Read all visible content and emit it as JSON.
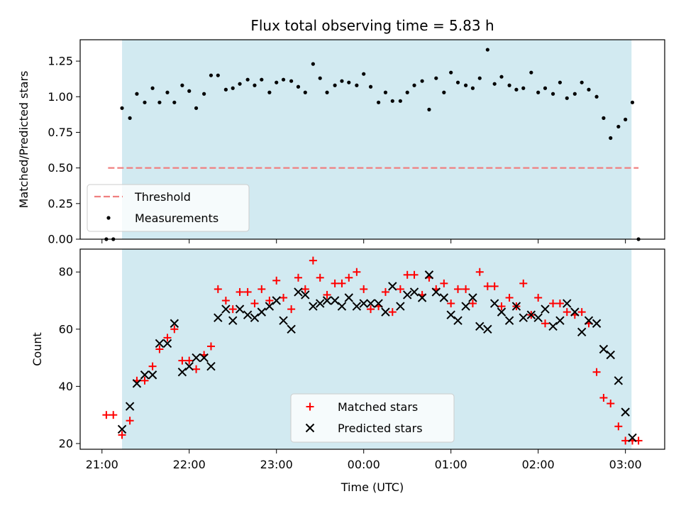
{
  "chart_data": [
    {
      "type": "scatter",
      "title": "Flux total observing time = 5.83 h",
      "xlabel": "",
      "ylabel": "Matched/Predicted stars",
      "ylim": [
        0,
        1.4
      ],
      "yticks": [
        "0.00",
        "0.25",
        "0.50",
        "0.75",
        "1.00",
        "1.25"
      ],
      "legend": {
        "position": "lower-left",
        "entries": [
          "Threshold",
          "Measurements"
        ]
      },
      "shaded_interval_hours": [
        21.23,
        27.07
      ],
      "shade_color": "#add8e6",
      "threshold": {
        "name": "Threshold",
        "value": 0.5,
        "x_range": [
          21.07,
          27.15
        ],
        "color": "#f08080"
      },
      "series": [
        {
          "name": "Measurements",
          "color": "#000000",
          "x": [
            21.05,
            21.13,
            21.23,
            21.32,
            21.4,
            21.49,
            21.58,
            21.66,
            21.75,
            21.83,
            21.92,
            22.0,
            22.08,
            22.17,
            22.25,
            22.33,
            22.42,
            22.5,
            22.58,
            22.67,
            22.75,
            22.83,
            22.92,
            23.0,
            23.08,
            23.17,
            23.25,
            23.33,
            23.42,
            23.5,
            23.58,
            23.67,
            23.75,
            23.83,
            23.92,
            24.0,
            24.08,
            24.17,
            24.25,
            24.33,
            24.42,
            24.5,
            24.58,
            24.67,
            24.75,
            24.83,
            24.92,
            25.0,
            25.08,
            25.17,
            25.25,
            25.33,
            25.42,
            25.5,
            25.58,
            25.67,
            25.75,
            25.83,
            25.92,
            26.0,
            26.08,
            26.17,
            26.25,
            26.33,
            26.42,
            26.5,
            26.58,
            26.67,
            26.75,
            26.83,
            26.92,
            27.0,
            27.08,
            27.15
          ],
          "y": [
            0.0,
            0.0,
            0.92,
            0.85,
            1.02,
            0.96,
            1.06,
            0.96,
            1.03,
            0.96,
            1.08,
            1.04,
            0.92,
            1.02,
            1.15,
            1.15,
            1.05,
            1.06,
            1.09,
            1.12,
            1.08,
            1.12,
            1.03,
            1.1,
            1.12,
            1.11,
            1.07,
            1.03,
            1.23,
            1.13,
            1.03,
            1.08,
            1.11,
            1.1,
            1.08,
            1.16,
            1.07,
            0.96,
            1.03,
            0.97,
            0.97,
            1.03,
            1.08,
            1.11,
            0.91,
            1.13,
            1.03,
            1.17,
            1.1,
            1.08,
            1.06,
            1.13,
            1.33,
            1.09,
            1.14,
            1.08,
            1.05,
            1.06,
            1.17,
            1.03,
            1.06,
            1.02,
            1.1,
            0.99,
            1.02,
            1.1,
            1.05,
            1.0,
            0.85,
            0.71,
            0.79,
            0.84,
            0.96,
            0.0
          ]
        }
      ]
    },
    {
      "type": "scatter",
      "title": "",
      "xlabel": "Time (UTC)",
      "ylabel": "Count",
      "xlim_hours": [
        20.75,
        27.45
      ],
      "ylim": [
        18,
        88
      ],
      "xticks": [
        {
          "value": 21,
          "label": "21:00"
        },
        {
          "value": 22,
          "label": "22:00"
        },
        {
          "value": 23,
          "label": "23:00"
        },
        {
          "value": 24,
          "label": "00:00"
        },
        {
          "value": 25,
          "label": "01:00"
        },
        {
          "value": 26,
          "label": "02:00"
        },
        {
          "value": 27,
          "label": "03:00"
        }
      ],
      "yticks": [
        "20",
        "40",
        "60",
        "80"
      ],
      "legend": {
        "position": "bottom-center",
        "entries": [
          "Matched stars",
          "Predicted stars"
        ]
      },
      "shaded_interval_hours": [
        21.23,
        27.07
      ],
      "shade_color": "#add8e6",
      "series": [
        {
          "name": "Matched stars",
          "marker": "+",
          "color": "#ff0000",
          "x": [
            21.05,
            21.13,
            21.23,
            21.32,
            21.4,
            21.49,
            21.58,
            21.66,
            21.75,
            21.83,
            21.92,
            22.0,
            22.08,
            22.17,
            22.25,
            22.33,
            22.42,
            22.5,
            22.58,
            22.67,
            22.75,
            22.83,
            22.92,
            23.0,
            23.08,
            23.17,
            23.25,
            23.33,
            23.42,
            23.5,
            23.58,
            23.67,
            23.75,
            23.83,
            23.92,
            24.0,
            24.08,
            24.17,
            24.25,
            24.33,
            24.42,
            24.5,
            24.58,
            24.67,
            24.75,
            24.83,
            24.92,
            25.0,
            25.08,
            25.17,
            25.25,
            25.33,
            25.42,
            25.5,
            25.58,
            25.67,
            25.75,
            25.83,
            25.92,
            26.0,
            26.08,
            26.17,
            26.25,
            26.33,
            26.42,
            26.5,
            26.58,
            26.67,
            26.75,
            26.83,
            26.92,
            27.0,
            27.08,
            27.15
          ],
          "y": [
            30,
            30,
            23,
            28,
            42,
            42,
            47,
            53,
            57,
            60,
            49,
            49,
            46,
            51,
            54,
            74,
            70,
            67,
            73,
            73,
            69,
            74,
            70,
            77,
            71,
            67,
            78,
            74,
            84,
            78,
            72,
            76,
            76,
            78,
            80,
            74,
            67,
            68,
            73,
            66,
            74,
            79,
            79,
            72,
            78,
            74,
            76,
            69,
            74,
            74,
            69,
            80,
            75,
            75,
            68,
            71,
            68,
            76,
            65,
            71,
            62,
            69,
            69,
            66,
            65,
            66,
            62,
            45,
            36,
            34,
            26,
            21,
            21,
            21
          ]
        },
        {
          "name": "Predicted stars",
          "marker": "x",
          "color": "#000000",
          "x": [
            21.23,
            21.32,
            21.4,
            21.49,
            21.58,
            21.66,
            21.75,
            21.83,
            21.92,
            22.0,
            22.08,
            22.17,
            22.25,
            22.33,
            22.42,
            22.5,
            22.58,
            22.67,
            22.75,
            22.83,
            22.92,
            23.0,
            23.08,
            23.17,
            23.25,
            23.33,
            23.42,
            23.5,
            23.58,
            23.67,
            23.75,
            23.83,
            23.92,
            24.0,
            24.08,
            24.17,
            24.25,
            24.33,
            24.42,
            24.5,
            24.58,
            24.67,
            24.75,
            24.83,
            24.92,
            25.0,
            25.08,
            25.17,
            25.25,
            25.33,
            25.42,
            25.5,
            25.58,
            25.67,
            25.75,
            25.83,
            25.92,
            26.0,
            26.08,
            26.17,
            26.25,
            26.33,
            26.42,
            26.5,
            26.58,
            26.67,
            26.75,
            26.83,
            26.92,
            27.0,
            27.08
          ],
          "y": [
            25,
            33,
            41,
            44,
            44,
            55,
            55,
            62,
            45,
            47,
            50,
            50,
            47,
            64,
            67,
            63,
            67,
            65,
            64,
            66,
            68,
            70,
            63,
            60,
            73,
            72,
            68,
            69,
            70,
            70,
            68,
            71,
            68,
            69,
            69,
            69,
            66,
            75,
            68,
            72,
            73,
            71,
            79,
            73,
            71,
            65,
            63,
            68,
            71,
            61,
            60,
            69,
            66,
            63,
            68,
            64,
            65,
            64,
            67,
            61,
            63,
            69,
            66,
            59,
            63,
            62,
            53,
            51,
            42,
            31,
            22
          ]
        }
      ]
    }
  ]
}
